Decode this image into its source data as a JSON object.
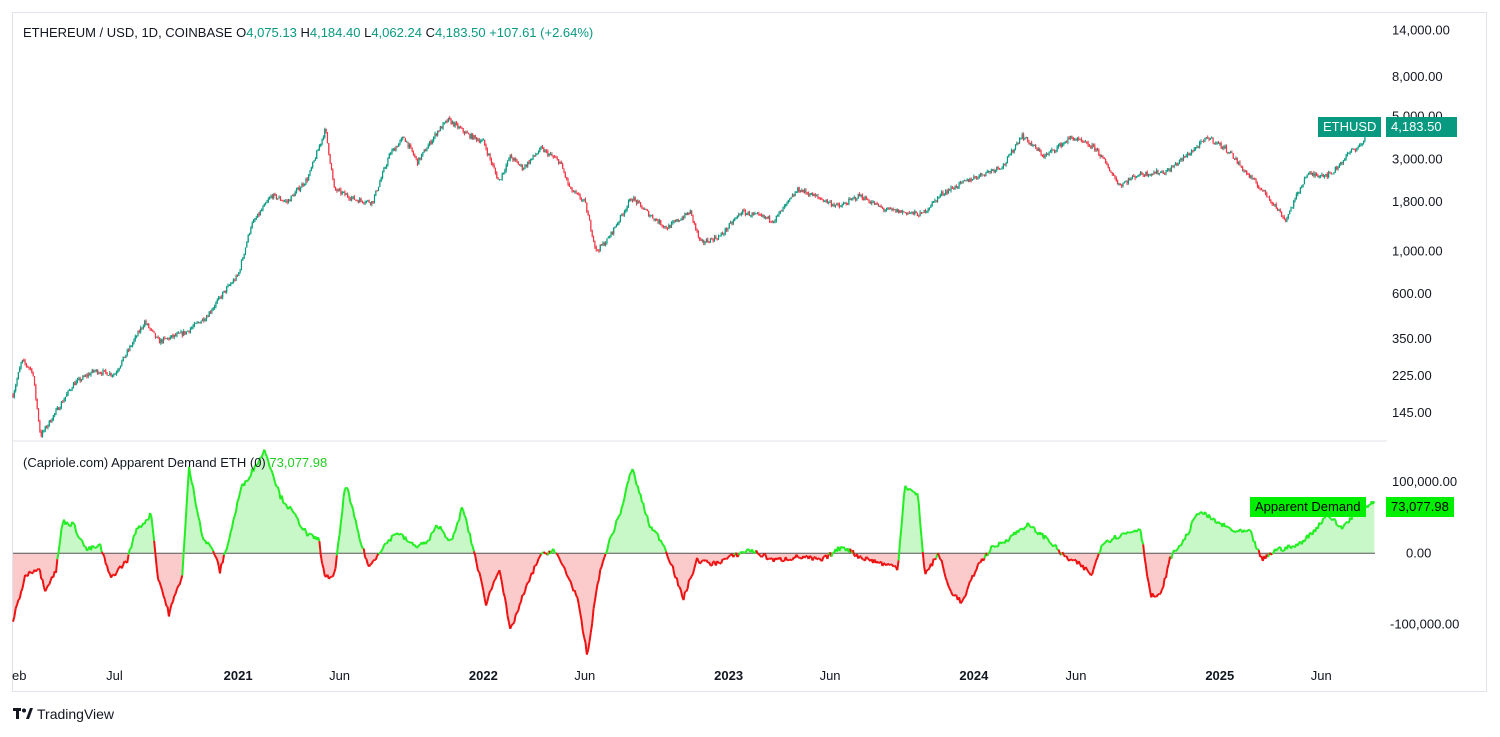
{
  "header": {
    "symbol": "ETHEREUM / USD, 1D, COINBASE",
    "o_label": "O",
    "o": "4,075.13",
    "h_label": "H",
    "h": "4,184.40",
    "l_label": "L",
    "l": "4,062.24",
    "c_label": "C",
    "c": "4,183.50",
    "change": "+107.61 (+2.64%)"
  },
  "indicator": {
    "title": "(Capriole.com) Apparent Demand ETH (0)",
    "value": "73,077.98",
    "tag_label": "Apparent Demand",
    "tag_value": "73,077.98"
  },
  "price_tag": {
    "label": "ETHUSD",
    "value": "4,183.50"
  },
  "brand": {
    "name": "TradingView"
  },
  "colors": {
    "up": "#089981",
    "down": "#f23645",
    "demand_pos": "#22ee22",
    "demand_neg": "#ee1111",
    "demand_pos_fill": "#c8f7c8",
    "demand_neg_fill": "#fbcaca",
    "price_tag": "#089981",
    "demand_tag": "#00ff00"
  },
  "chart_data": [
    {
      "type": "candlestick",
      "title": "ETHEREUM / USD, 1D, COINBASE",
      "scale": "log",
      "y_ticks": [
        "14,000.00",
        "8,000.00",
        "5,000.00",
        "3,000.00",
        "1,800.00",
        "1,000.00",
        "600.00",
        "350.00",
        "225.00",
        "145.00"
      ],
      "y_tick_values": [
        14000,
        8000,
        5000,
        3000,
        1800,
        1000,
        600,
        350,
        225,
        145
      ],
      "ylim": [
        105,
        17000
      ],
      "x_range": [
        "2020-02-01",
        "2025-08-20"
      ],
      "x_ticks": [
        {
          "label": "eb",
          "date": "2020-02-01",
          "bold": false
        },
        {
          "label": "Jul",
          "date": "2020-07-01",
          "bold": false
        },
        {
          "label": "2021",
          "date": "2021-01-01",
          "bold": true
        },
        {
          "label": "Jun",
          "date": "2021-06-01",
          "bold": false
        },
        {
          "label": "2022",
          "date": "2022-01-01",
          "bold": true
        },
        {
          "label": "Jun",
          "date": "2022-06-01",
          "bold": false
        },
        {
          "label": "2023",
          "date": "2023-01-01",
          "bold": true
        },
        {
          "label": "Jun",
          "date": "2023-06-01",
          "bold": false
        },
        {
          "label": "2024",
          "date": "2024-01-01",
          "bold": true
        },
        {
          "label": "Jun",
          "date": "2024-06-01",
          "bold": false
        },
        {
          "label": "2025",
          "date": "2025-01-01",
          "bold": true
        },
        {
          "label": "Jun",
          "date": "2025-06-01",
          "bold": false
        }
      ],
      "close_path": [
        {
          "t": "2020-02-01",
          "v": 180
        },
        {
          "t": "2020-02-14",
          "v": 270
        },
        {
          "t": "2020-03-01",
          "v": 240
        },
        {
          "t": "2020-03-13",
          "v": 110
        },
        {
          "t": "2020-04-01",
          "v": 140
        },
        {
          "t": "2020-05-01",
          "v": 205
        },
        {
          "t": "2020-06-01",
          "v": 240
        },
        {
          "t": "2020-07-01",
          "v": 230
        },
        {
          "t": "2020-08-15",
          "v": 430
        },
        {
          "t": "2020-09-05",
          "v": 340
        },
        {
          "t": "2020-10-15",
          "v": 380
        },
        {
          "t": "2020-11-15",
          "v": 460
        },
        {
          "t": "2020-12-15",
          "v": 640
        },
        {
          "t": "2021-01-01",
          "v": 750
        },
        {
          "t": "2021-01-20",
          "v": 1350
        },
        {
          "t": "2021-02-20",
          "v": 1950
        },
        {
          "t": "2021-03-15",
          "v": 1800
        },
        {
          "t": "2021-04-15",
          "v": 2400
        },
        {
          "t": "2021-05-11",
          "v": 4300
        },
        {
          "t": "2021-05-24",
          "v": 2100
        },
        {
          "t": "2021-06-25",
          "v": 1850
        },
        {
          "t": "2021-07-20",
          "v": 1800
        },
        {
          "t": "2021-08-15",
          "v": 3200
        },
        {
          "t": "2021-09-05",
          "v": 3900
        },
        {
          "t": "2021-09-25",
          "v": 2900
        },
        {
          "t": "2021-10-25",
          "v": 4200
        },
        {
          "t": "2021-11-10",
          "v": 4800
        },
        {
          "t": "2021-12-10",
          "v": 4000
        },
        {
          "t": "2022-01-01",
          "v": 3700
        },
        {
          "t": "2022-01-24",
          "v": 2300
        },
        {
          "t": "2022-02-10",
          "v": 3100
        },
        {
          "t": "2022-03-01",
          "v": 2700
        },
        {
          "t": "2022-03-28",
          "v": 3400
        },
        {
          "t": "2022-04-25",
          "v": 2900
        },
        {
          "t": "2022-05-10",
          "v": 2100
        },
        {
          "t": "2022-06-01",
          "v": 1800
        },
        {
          "t": "2022-06-18",
          "v": 1000
        },
        {
          "t": "2022-07-05",
          "v": 1150
        },
        {
          "t": "2022-08-10",
          "v": 1900
        },
        {
          "t": "2022-09-05",
          "v": 1550
        },
        {
          "t": "2022-10-01",
          "v": 1320
        },
        {
          "t": "2022-11-05",
          "v": 1600
        },
        {
          "t": "2022-11-20",
          "v": 1100
        },
        {
          "t": "2022-12-20",
          "v": 1200
        },
        {
          "t": "2023-01-20",
          "v": 1600
        },
        {
          "t": "2023-03-10",
          "v": 1450
        },
        {
          "t": "2023-04-15",
          "v": 2100
        },
        {
          "t": "2023-06-15",
          "v": 1700
        },
        {
          "t": "2023-07-15",
          "v": 1950
        },
        {
          "t": "2023-08-20",
          "v": 1650
        },
        {
          "t": "2023-10-15",
          "v": 1550
        },
        {
          "t": "2023-11-15",
          "v": 2000
        },
        {
          "t": "2023-12-25",
          "v": 2350
        },
        {
          "t": "2024-02-15",
          "v": 2800
        },
        {
          "t": "2024-03-12",
          "v": 4000
        },
        {
          "t": "2024-04-15",
          "v": 3100
        },
        {
          "t": "2024-05-25",
          "v": 3900
        },
        {
          "t": "2024-07-01",
          "v": 3400
        },
        {
          "t": "2024-08-05",
          "v": 2200
        },
        {
          "t": "2024-09-01",
          "v": 2500
        },
        {
          "t": "2024-10-15",
          "v": 2600
        },
        {
          "t": "2024-11-20",
          "v": 3300
        },
        {
          "t": "2024-12-15",
          "v": 3900
        },
        {
          "t": "2025-01-15",
          "v": 3300
        },
        {
          "t": "2025-02-03",
          "v": 2700
        },
        {
          "t": "2025-03-15",
          "v": 1900
        },
        {
          "t": "2025-04-09",
          "v": 1450
        },
        {
          "t": "2025-05-10",
          "v": 2500
        },
        {
          "t": "2025-06-15",
          "v": 2500
        },
        {
          "t": "2025-07-15",
          "v": 3300
        },
        {
          "t": "2025-08-01",
          "v": 3600
        },
        {
          "t": "2025-08-13",
          "v": 4700
        },
        {
          "t": "2025-08-20",
          "v": 4183.5
        }
      ],
      "last": {
        "open": 4075.13,
        "high": 4184.4,
        "low": 4062.24,
        "close": 4183.5,
        "change": 107.61,
        "change_pct": 2.64
      }
    },
    {
      "type": "area",
      "title": "(Capriole.com) Apparent Demand ETH (0)",
      "y_ticks": [
        "100,000.00",
        "0.00",
        "-100,000.00"
      ],
      "y_tick_values": [
        100000,
        0,
        -100000
      ],
      "ylim": [
        -150000,
        155000
      ],
      "baseline": 0,
      "series": [
        {
          "t": "2020-02-01",
          "v": -95000
        },
        {
          "t": "2020-02-20",
          "v": -30000
        },
        {
          "t": "2020-03-10",
          "v": -20000
        },
        {
          "t": "2020-03-20",
          "v": -50000
        },
        {
          "t": "2020-04-05",
          "v": -25000
        },
        {
          "t": "2020-04-15",
          "v": 45000
        },
        {
          "t": "2020-05-01",
          "v": 40000
        },
        {
          "t": "2020-05-20",
          "v": 5000
        },
        {
          "t": "2020-06-10",
          "v": 10000
        },
        {
          "t": "2020-06-25",
          "v": -35000
        },
        {
          "t": "2020-07-20",
          "v": -10000
        },
        {
          "t": "2020-08-01",
          "v": 30000
        },
        {
          "t": "2020-08-25",
          "v": 55000
        },
        {
          "t": "2020-09-03",
          "v": -30000
        },
        {
          "t": "2020-09-20",
          "v": -85000
        },
        {
          "t": "2020-10-10",
          "v": -30000
        },
        {
          "t": "2020-10-20",
          "v": 120000
        },
        {
          "t": "2020-11-10",
          "v": 20000
        },
        {
          "t": "2020-11-25",
          "v": 5000
        },
        {
          "t": "2020-12-05",
          "v": -25000
        },
        {
          "t": "2020-12-20",
          "v": 25000
        },
        {
          "t": "2021-01-05",
          "v": 90000
        },
        {
          "t": "2021-01-25",
          "v": 120000
        },
        {
          "t": "2021-02-10",
          "v": 145000
        },
        {
          "t": "2021-03-05",
          "v": 80000
        },
        {
          "t": "2021-03-25",
          "v": 55000
        },
        {
          "t": "2021-04-15",
          "v": 25000
        },
        {
          "t": "2021-05-01",
          "v": 20000
        },
        {
          "t": "2021-05-10",
          "v": -35000
        },
        {
          "t": "2021-05-25",
          "v": -30000
        },
        {
          "t": "2021-06-10",
          "v": 100000
        },
        {
          "t": "2021-07-01",
          "v": 20000
        },
        {
          "t": "2021-07-15",
          "v": -20000
        },
        {
          "t": "2021-08-01",
          "v": 5000
        },
        {
          "t": "2021-08-25",
          "v": 30000
        },
        {
          "t": "2021-09-20",
          "v": 10000
        },
        {
          "t": "2021-10-10",
          "v": 15000
        },
        {
          "t": "2021-10-25",
          "v": 40000
        },
        {
          "t": "2021-11-15",
          "v": 15000
        },
        {
          "t": "2021-12-01",
          "v": 65000
        },
        {
          "t": "2021-12-20",
          "v": -5000
        },
        {
          "t": "2022-01-05",
          "v": -70000
        },
        {
          "t": "2022-01-25",
          "v": -20000
        },
        {
          "t": "2022-02-10",
          "v": -110000
        },
        {
          "t": "2022-03-01",
          "v": -60000
        },
        {
          "t": "2022-03-25",
          "v": -5000
        },
        {
          "t": "2022-04-15",
          "v": 5000
        },
        {
          "t": "2022-05-01",
          "v": -20000
        },
        {
          "t": "2022-05-20",
          "v": -60000
        },
        {
          "t": "2022-06-05",
          "v": -145000
        },
        {
          "t": "2022-06-20",
          "v": -40000
        },
        {
          "t": "2022-07-05",
          "v": 10000
        },
        {
          "t": "2022-07-25",
          "v": 60000
        },
        {
          "t": "2022-08-10",
          "v": 120000
        },
        {
          "t": "2022-09-05",
          "v": 40000
        },
        {
          "t": "2022-09-25",
          "v": 15000
        },
        {
          "t": "2022-10-10",
          "v": -20000
        },
        {
          "t": "2022-10-25",
          "v": -65000
        },
        {
          "t": "2022-11-15",
          "v": -10000
        },
        {
          "t": "2022-12-10",
          "v": -15000
        },
        {
          "t": "2023-01-05",
          "v": -5000
        },
        {
          "t": "2023-02-01",
          "v": 5000
        },
        {
          "t": "2023-03-10",
          "v": -10000
        },
        {
          "t": "2023-04-15",
          "v": -5000
        },
        {
          "t": "2023-05-20",
          "v": -10000
        },
        {
          "t": "2023-06-20",
          "v": 10000
        },
        {
          "t": "2023-07-15",
          "v": -5000
        },
        {
          "t": "2023-08-20",
          "v": -15000
        },
        {
          "t": "2023-09-10",
          "v": -20000
        },
        {
          "t": "2023-09-20",
          "v": 95000
        },
        {
          "t": "2023-10-10",
          "v": 80000
        },
        {
          "t": "2023-10-20",
          "v": -30000
        },
        {
          "t": "2023-11-10",
          "v": 0
        },
        {
          "t": "2023-11-25",
          "v": -50000
        },
        {
          "t": "2023-12-15",
          "v": -70000
        },
        {
          "t": "2024-01-05",
          "v": -20000
        },
        {
          "t": "2024-01-25",
          "v": 5000
        },
        {
          "t": "2024-02-20",
          "v": 20000
        },
        {
          "t": "2024-03-20",
          "v": 40000
        },
        {
          "t": "2024-04-20",
          "v": 20000
        },
        {
          "t": "2024-05-15",
          "v": -5000
        },
        {
          "t": "2024-06-05",
          "v": -15000
        },
        {
          "t": "2024-06-25",
          "v": -30000
        },
        {
          "t": "2024-07-10",
          "v": 15000
        },
        {
          "t": "2024-08-05",
          "v": 25000
        },
        {
          "t": "2024-09-05",
          "v": 35000
        },
        {
          "t": "2024-09-20",
          "v": -60000
        },
        {
          "t": "2024-10-05",
          "v": -60000
        },
        {
          "t": "2024-10-20",
          "v": -5000
        },
        {
          "t": "2024-11-10",
          "v": 20000
        },
        {
          "t": "2024-12-01",
          "v": 60000
        },
        {
          "t": "2024-12-25",
          "v": 45000
        },
        {
          "t": "2025-01-25",
          "v": 30000
        },
        {
          "t": "2025-02-15",
          "v": 30000
        },
        {
          "t": "2025-03-05",
          "v": -10000
        },
        {
          "t": "2025-03-25",
          "v": 5000
        },
        {
          "t": "2025-04-25",
          "v": 10000
        },
        {
          "t": "2025-05-20",
          "v": 30000
        },
        {
          "t": "2025-06-10",
          "v": 55000
        },
        {
          "t": "2025-07-01",
          "v": 35000
        },
        {
          "t": "2025-07-25",
          "v": 60000
        },
        {
          "t": "2025-08-20",
          "v": 73077.98
        }
      ]
    }
  ]
}
